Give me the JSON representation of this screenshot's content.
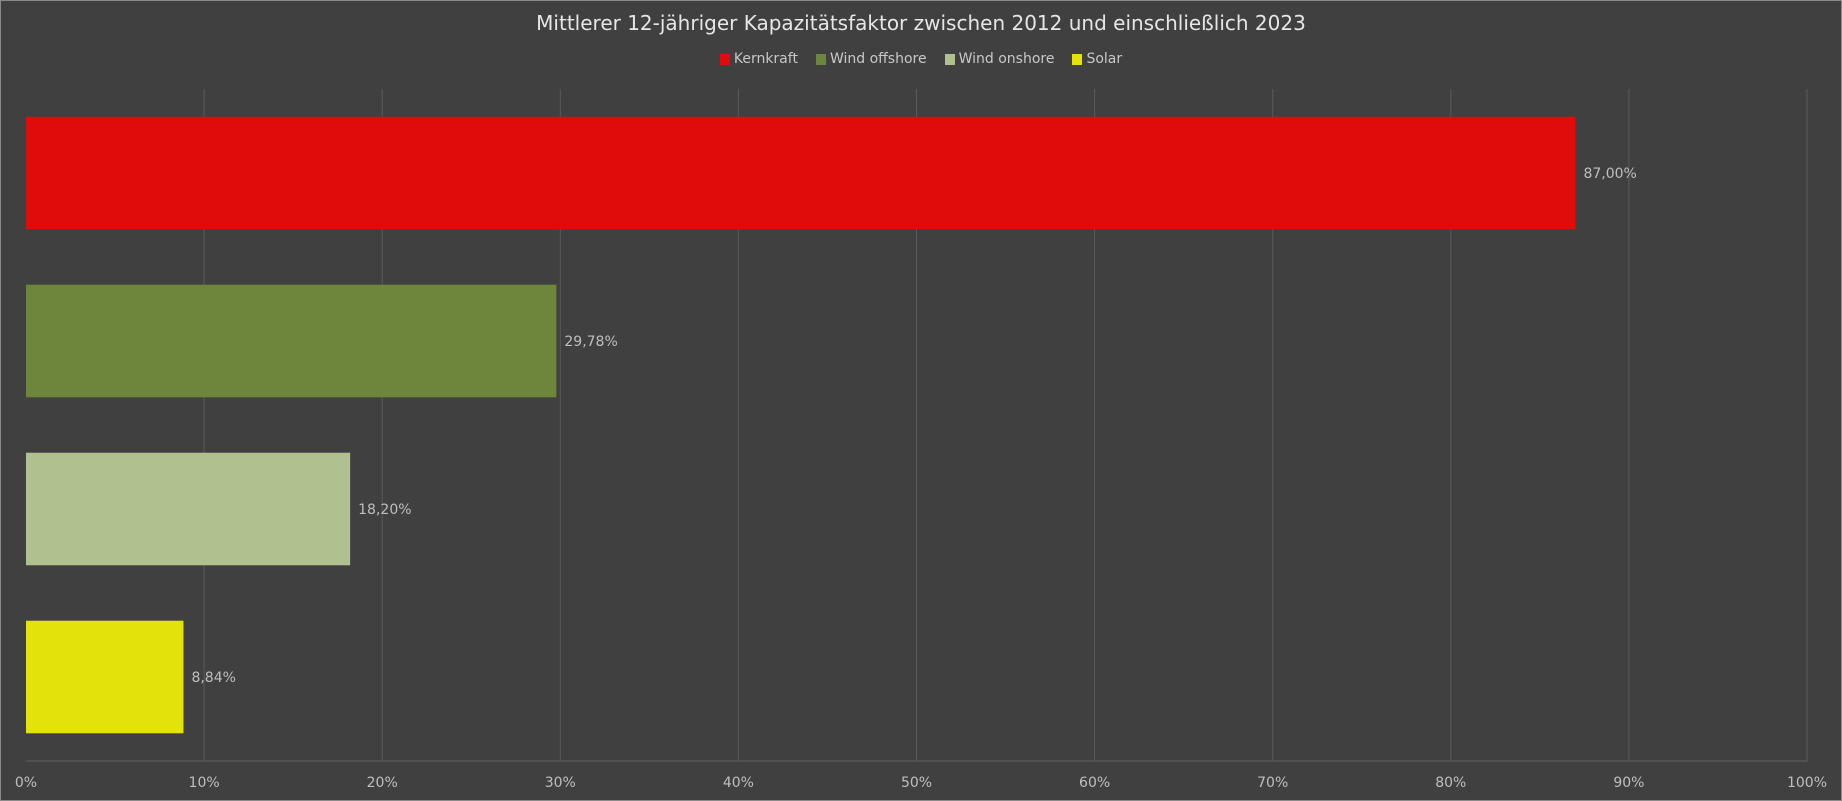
{
  "chart_data": {
    "type": "bar",
    "orientation": "horizontal",
    "title": "Mittlerer 12-jähriger Kapazitätsfaktor zwischen 2012 und einschließlich 2023",
    "categories": [
      "Kernkraft",
      "Wind offshore",
      "Wind onshore",
      "Solar"
    ],
    "values": [
      87.0,
      29.78,
      18.2,
      8.84
    ],
    "data_labels": [
      "87,00%",
      "29,78%",
      "18,20%",
      "8,84%"
    ],
    "colors": [
      "#e00b0b",
      "#6e863c",
      "#b0c18f",
      "#e3e30b"
    ],
    "xlim": [
      0,
      100
    ],
    "xticks": [
      "0%",
      "10%",
      "20%",
      "30%",
      "40%",
      "50%",
      "60%",
      "70%",
      "80%",
      "90%",
      "100%"
    ],
    "xlabel": "",
    "ylabel": "",
    "grid": "vertical",
    "legend_position": "top"
  }
}
